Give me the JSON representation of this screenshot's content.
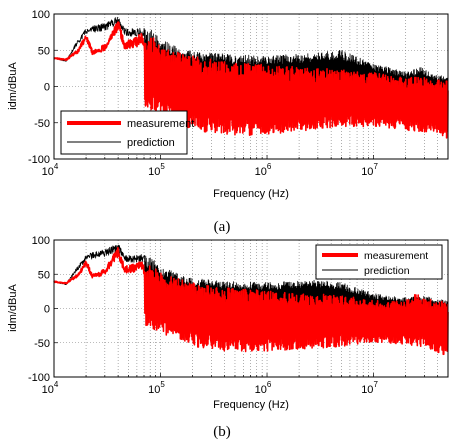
{
  "chart_data": [
    {
      "type": "line",
      "caption": "(a)",
      "xlabel": "Frequency (Hz)",
      "ylabel": "idm/dBuA",
      "xscale": "log",
      "xlim": [
        10000,
        50000000
      ],
      "ylim": [
        -100,
        100
      ],
      "yticks": [
        -100,
        -50,
        0,
        50,
        100
      ],
      "xticks": [
        {
          "value": 10000,
          "base": "10",
          "exp": "4"
        },
        {
          "value": 100000,
          "base": "10",
          "exp": "5"
        },
        {
          "value": 1000000,
          "base": "10",
          "exp": "6"
        },
        {
          "value": 10000000,
          "base": "10",
          "exp": "7"
        }
      ],
      "grid": "dotted",
      "legend": {
        "placement": "bottom-left",
        "entries": [
          "measurement",
          "prediction"
        ]
      },
      "series": [
        {
          "name": "measurement",
          "color": "#ff0000",
          "style": "noisy",
          "envelope_upper": [
            [
              10000,
              40
            ],
            [
              13000,
              38
            ],
            [
              17000,
              52
            ],
            [
              20000,
              74
            ],
            [
              23000,
              50
            ],
            [
              30000,
              58
            ],
            [
              40000,
              92
            ],
            [
              46000,
              62
            ],
            [
              60000,
              68
            ],
            [
              65000,
              76
            ],
            [
              72000,
              60
            ],
            [
              85000,
              70
            ],
            [
              100000,
              56
            ],
            [
              140000,
              48
            ],
            [
              200000,
              42
            ],
            [
              400000,
              34
            ],
            [
              1000000,
              30
            ],
            [
              2000000,
              27
            ],
            [
              3000000,
              25
            ],
            [
              5000000,
              24
            ],
            [
              7000000,
              20
            ],
            [
              10000000,
              20
            ],
            [
              15000000,
              14
            ],
            [
              20000000,
              12
            ],
            [
              28000000,
              14
            ],
            [
              35000000,
              8
            ],
            [
              50000000,
              10
            ]
          ],
          "envelope_lower": [
            [
              10000,
              28
            ],
            [
              13000,
              24
            ],
            [
              17000,
              18
            ],
            [
              20000,
              10
            ],
            [
              30000,
              2
            ],
            [
              40000,
              -5
            ],
            [
              60000,
              -20
            ],
            [
              100000,
              -40
            ],
            [
              200000,
              -62
            ],
            [
              400000,
              -66
            ],
            [
              1000000,
              -68
            ],
            [
              2000000,
              -62
            ],
            [
              3000000,
              -58
            ],
            [
              5000000,
              -56
            ],
            [
              10000000,
              -55
            ],
            [
              20000000,
              -60
            ],
            [
              35000000,
              -64
            ],
            [
              50000000,
              -72
            ]
          ]
        },
        {
          "name": "prediction",
          "color": "#000000",
          "style": "noisy",
          "envelope_upper": [
            [
              10000,
              40
            ],
            [
              13000,
              36
            ],
            [
              16000,
              60
            ],
            [
              20000,
              80
            ],
            [
              23000,
              84
            ],
            [
              30000,
              88
            ],
            [
              40000,
              97
            ],
            [
              46000,
              80
            ],
            [
              60000,
              80
            ],
            [
              65000,
              82
            ],
            [
              85000,
              78
            ],
            [
              100000,
              66
            ],
            [
              150000,
              55
            ],
            [
              200000,
              48
            ],
            [
              400000,
              45
            ],
            [
              1000000,
              42
            ],
            [
              2000000,
              45
            ],
            [
              3000000,
              48
            ],
            [
              5000000,
              50
            ],
            [
              7000000,
              42
            ],
            [
              10000000,
              32
            ],
            [
              15000000,
              25
            ],
            [
              20000000,
              20
            ],
            [
              28000000,
              28
            ],
            [
              35000000,
              18
            ],
            [
              50000000,
              15
            ]
          ],
          "envelope_lower": [
            [
              10000,
              30
            ],
            [
              13000,
              26
            ],
            [
              17000,
              22
            ],
            [
              20000,
              20
            ],
            [
              30000,
              15
            ],
            [
              40000,
              12
            ],
            [
              60000,
              5
            ],
            [
              100000,
              0
            ],
            [
              200000,
              -8
            ],
            [
              400000,
              -10
            ],
            [
              1000000,
              -10
            ],
            [
              2000000,
              -8
            ],
            [
              3000000,
              -8
            ],
            [
              5000000,
              -5
            ],
            [
              10000000,
              -12
            ],
            [
              20000000,
              -15
            ],
            [
              35000000,
              -18
            ],
            [
              50000000,
              -15
            ]
          ]
        }
      ]
    },
    {
      "type": "line",
      "caption": "(b)",
      "xlabel": "Frequency (Hz)",
      "ylabel": "idm/dBuA",
      "xscale": "log",
      "xlim": [
        10000,
        50000000
      ],
      "ylim": [
        -100,
        100
      ],
      "yticks": [
        -100,
        -50,
        0,
        50,
        100
      ],
      "xticks": [
        {
          "value": 10000,
          "base": "10",
          "exp": "4"
        },
        {
          "value": 100000,
          "base": "10",
          "exp": "5"
        },
        {
          "value": 1000000,
          "base": "10",
          "exp": "6"
        },
        {
          "value": 10000000,
          "base": "10",
          "exp": "7"
        }
      ],
      "grid": "dotted",
      "legend": {
        "placement": "top-right",
        "entries": [
          "measurement",
          "prediction"
        ]
      },
      "series": [
        {
          "name": "measurement",
          "color": "#ff0000",
          "style": "noisy",
          "envelope_upper": [
            [
              10000,
              40
            ],
            [
              13000,
              38
            ],
            [
              17000,
              52
            ],
            [
              20000,
              72
            ],
            [
              23000,
              50
            ],
            [
              30000,
              58
            ],
            [
              40000,
              90
            ],
            [
              46000,
              62
            ],
            [
              60000,
              66
            ],
            [
              65000,
              74
            ],
            [
              72000,
              58
            ],
            [
              85000,
              66
            ],
            [
              100000,
              52
            ],
            [
              140000,
              44
            ],
            [
              200000,
              38
            ],
            [
              400000,
              30
            ],
            [
              1000000,
              26
            ],
            [
              2000000,
              22
            ],
            [
              3000000,
              22
            ],
            [
              5000000,
              20
            ],
            [
              7000000,
              16
            ],
            [
              10000000,
              12
            ],
            [
              15000000,
              10
            ],
            [
              20000000,
              12
            ],
            [
              25000000,
              24
            ],
            [
              30000000,
              14
            ],
            [
              50000000,
              10
            ]
          ],
          "envelope_lower": [
            [
              10000,
              28
            ],
            [
              13000,
              24
            ],
            [
              17000,
              18
            ],
            [
              20000,
              10
            ],
            [
              30000,
              2
            ],
            [
              40000,
              -5
            ],
            [
              60000,
              -18
            ],
            [
              100000,
              -35
            ],
            [
              200000,
              -55
            ],
            [
              400000,
              -62
            ],
            [
              1000000,
              -64
            ],
            [
              2000000,
              -60
            ],
            [
              3000000,
              -58
            ],
            [
              5000000,
              -55
            ],
            [
              10000000,
              -50
            ],
            [
              20000000,
              -52
            ],
            [
              35000000,
              -60
            ],
            [
              50000000,
              -70
            ]
          ]
        },
        {
          "name": "prediction",
          "color": "#000000",
          "style": "noisy",
          "envelope_upper": [
            [
              10000,
              40
            ],
            [
              13000,
              36
            ],
            [
              16000,
              58
            ],
            [
              20000,
              78
            ],
            [
              23000,
              82
            ],
            [
              30000,
              86
            ],
            [
              40000,
              96
            ],
            [
              46000,
              78
            ],
            [
              60000,
              78
            ],
            [
              65000,
              80
            ],
            [
              85000,
              74
            ],
            [
              100000,
              62
            ],
            [
              150000,
              50
            ],
            [
              200000,
              44
            ],
            [
              400000,
              40
            ],
            [
              1000000,
              38
            ],
            [
              2000000,
              40
            ],
            [
              3000000,
              42
            ],
            [
              5000000,
              38
            ],
            [
              7000000,
              30
            ],
            [
              10000000,
              22
            ],
            [
              15000000,
              18
            ],
            [
              20000000,
              16
            ],
            [
              30000000,
              18
            ],
            [
              50000000,
              12
            ]
          ],
          "envelope_lower": [
            [
              10000,
              30
            ],
            [
              13000,
              26
            ],
            [
              17000,
              22
            ],
            [
              20000,
              20
            ],
            [
              30000,
              15
            ],
            [
              40000,
              12
            ],
            [
              60000,
              5
            ],
            [
              100000,
              0
            ],
            [
              200000,
              -6
            ],
            [
              400000,
              -8
            ],
            [
              1000000,
              -8
            ],
            [
              2000000,
              -6
            ],
            [
              3000000,
              -6
            ],
            [
              5000000,
              -8
            ],
            [
              10000000,
              -12
            ],
            [
              20000000,
              -14
            ],
            [
              35000000,
              -18
            ],
            [
              50000000,
              -16
            ]
          ]
        }
      ]
    }
  ]
}
